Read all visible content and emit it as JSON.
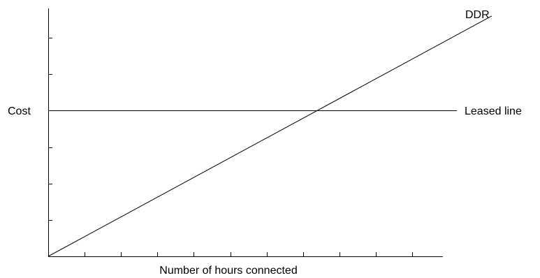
{
  "chart_data": {
    "type": "line",
    "title": "",
    "xlabel": "Number of hours connected",
    "ylabel": "Cost",
    "xlim": [
      0,
      11
    ],
    "ylim": [
      0,
      7
    ],
    "x_ticks": 11,
    "y_ticks": 7,
    "tick_labels": false,
    "grid": false,
    "legend": "inline labels at right end of lines",
    "series": [
      {
        "name": "DDR",
        "x": [
          0,
          11
        ],
        "y": [
          0,
          6.6
        ]
      },
      {
        "name": "Leased line",
        "x": [
          0,
          11
        ],
        "y": [
          4,
          4
        ]
      }
    ]
  }
}
